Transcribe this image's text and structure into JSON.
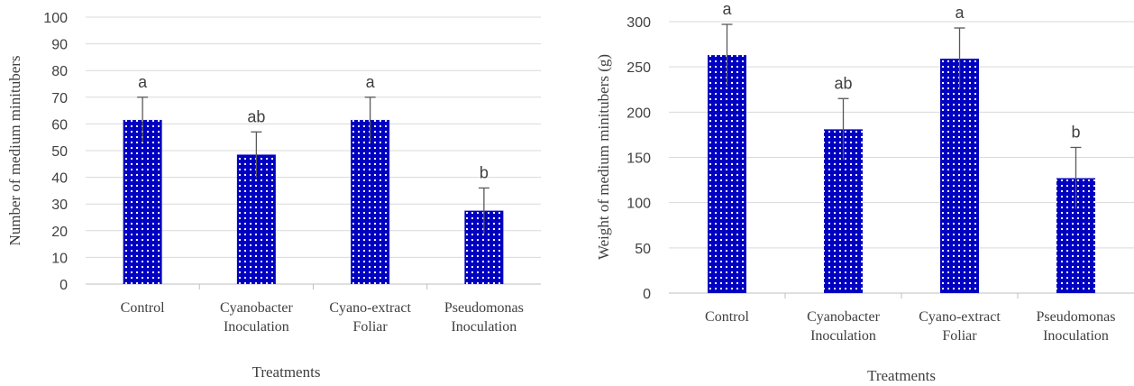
{
  "chart_data": [
    {
      "type": "bar",
      "categories": [
        [
          "Control"
        ],
        [
          "Cyanobacter",
          "Inoculation"
        ],
        [
          "Cyano-extract",
          "Foliar"
        ],
        [
          "Pseudomonas",
          "Inoculation"
        ]
      ],
      "values": [
        61.5,
        48.5,
        61.5,
        27.5
      ],
      "errors": [
        8.5,
        8.5,
        8.5,
        8.5
      ],
      "letters": [
        "a",
        "ab",
        "a",
        "b"
      ],
      "xlabel": "Treatments",
      "ylabel": "Number of medium minitubers",
      "ylim": [
        0,
        100
      ],
      "yticks": [
        0,
        10,
        20,
        30,
        40,
        50,
        60,
        70,
        80,
        90,
        100
      ],
      "grid": true,
      "bar_color": "#0000c0",
      "bar_pattern_color": "#ffffff",
      "gridline_color": "#d9d9d9",
      "error_bar_color": "#595959"
    },
    {
      "type": "bar",
      "categories": [
        [
          "Control"
        ],
        [
          "Cyanobacter",
          "Inoculation"
        ],
        [
          "Cyano-extract",
          "Foliar"
        ],
        [
          "Pseudomonas",
          "Inoculation"
        ]
      ],
      "values": [
        263,
        181,
        259,
        127
      ],
      "errors": [
        34,
        34,
        34,
        34
      ],
      "letters": [
        "a",
        "ab",
        "a",
        "b"
      ],
      "xlabel": "Treatments",
      "ylabel": "Weight of medium minitubers (g)",
      "ylim": [
        0,
        300
      ],
      "yticks": [
        0,
        50,
        100,
        150,
        200,
        250,
        300
      ],
      "grid": true,
      "bar_color": "#0000c0",
      "bar_pattern_color": "#ffffff",
      "gridline_color": "#d9d9d9",
      "error_bar_color": "#595959"
    }
  ]
}
